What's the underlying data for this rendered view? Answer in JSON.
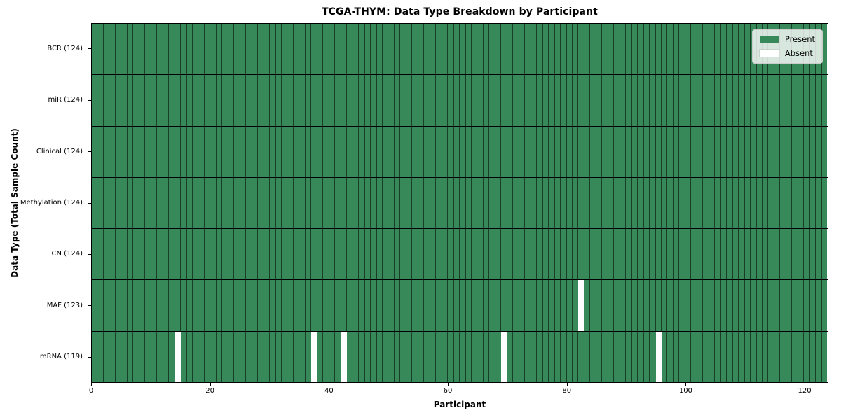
{
  "title": "TCGA-THYM: Data Type Breakdown by Participant",
  "chart_data": {
    "type": "heatmap",
    "title": "TCGA-THYM: Data Type Breakdown by Participant",
    "xlabel": "Participant",
    "ylabel": "Data Type (Total Sample Count)",
    "x_range": [
      0,
      124
    ],
    "n_participants": 124,
    "x_ticks": [
      0,
      20,
      40,
      60,
      80,
      100,
      120
    ],
    "grid": false,
    "colors": {
      "present": "#38895a",
      "absent": "#ffffff",
      "cell_edge": "rgba(0,0,0,0.55)",
      "row_separator": "#000000"
    },
    "rows": [
      {
        "label": "BCR (124)",
        "data_type": "BCR",
        "total_samples": 124,
        "present_count": 124,
        "absent_participants": []
      },
      {
        "label": "miR (124)",
        "data_type": "miR",
        "total_samples": 124,
        "present_count": 124,
        "absent_participants": []
      },
      {
        "label": "Clinical (124)",
        "data_type": "Clinical",
        "total_samples": 124,
        "present_count": 124,
        "absent_participants": []
      },
      {
        "label": "Methylation (124)",
        "data_type": "Methylation",
        "total_samples": 124,
        "present_count": 124,
        "absent_participants": []
      },
      {
        "label": "CN (124)",
        "data_type": "CN",
        "total_samples": 124,
        "present_count": 124,
        "absent_participants": []
      },
      {
        "label": "MAF (123)",
        "data_type": "MAF",
        "total_samples": 123,
        "present_count": 123,
        "absent_participants": [
          82
        ]
      },
      {
        "label": "mRNA (119)",
        "data_type": "mRNA",
        "total_samples": 119,
        "present_count": 119,
        "absent_participants": [
          14,
          37,
          42,
          69,
          95
        ]
      }
    ],
    "legend_entries": [
      {
        "label": "Present",
        "color": "#38895a"
      },
      {
        "label": "Absent",
        "color": "#ffffff"
      }
    ],
    "legend_position": "upper right"
  }
}
